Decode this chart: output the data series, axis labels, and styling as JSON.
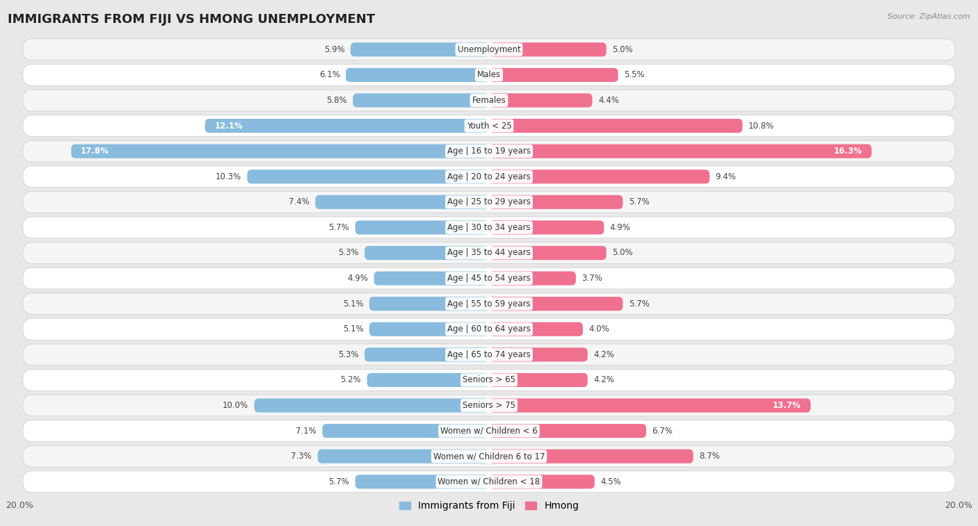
{
  "title": "IMMIGRANTS FROM FIJI VS HMONG UNEMPLOYMENT",
  "source": "Source: ZipAtlas.com",
  "categories": [
    "Unemployment",
    "Males",
    "Females",
    "Youth < 25",
    "Age | 16 to 19 years",
    "Age | 20 to 24 years",
    "Age | 25 to 29 years",
    "Age | 30 to 34 years",
    "Age | 35 to 44 years",
    "Age | 45 to 54 years",
    "Age | 55 to 59 years",
    "Age | 60 to 64 years",
    "Age | 65 to 74 years",
    "Seniors > 65",
    "Seniors > 75",
    "Women w/ Children < 6",
    "Women w/ Children 6 to 17",
    "Women w/ Children < 18"
  ],
  "fiji_values": [
    5.9,
    6.1,
    5.8,
    12.1,
    17.8,
    10.3,
    7.4,
    5.7,
    5.3,
    4.9,
    5.1,
    5.1,
    5.3,
    5.2,
    10.0,
    7.1,
    7.3,
    5.7
  ],
  "hmong_values": [
    5.0,
    5.5,
    4.4,
    10.8,
    16.3,
    9.4,
    5.7,
    4.9,
    5.0,
    3.7,
    5.7,
    4.0,
    4.2,
    4.2,
    13.7,
    6.7,
    8.7,
    4.5
  ],
  "fiji_color": "#88bbdd",
  "hmong_color": "#f07090",
  "fiji_label": "Immigrants from Fiji",
  "hmong_label": "Hmong",
  "x_max": 20.0,
  "bg_color": "#e8e8e8",
  "row_bg_odd": "#f5f5f5",
  "row_bg_even": "#ffffff",
  "title_fontsize": 13,
  "label_fontsize": 8.5,
  "value_fontsize": 8.5,
  "legend_fontsize": 10
}
